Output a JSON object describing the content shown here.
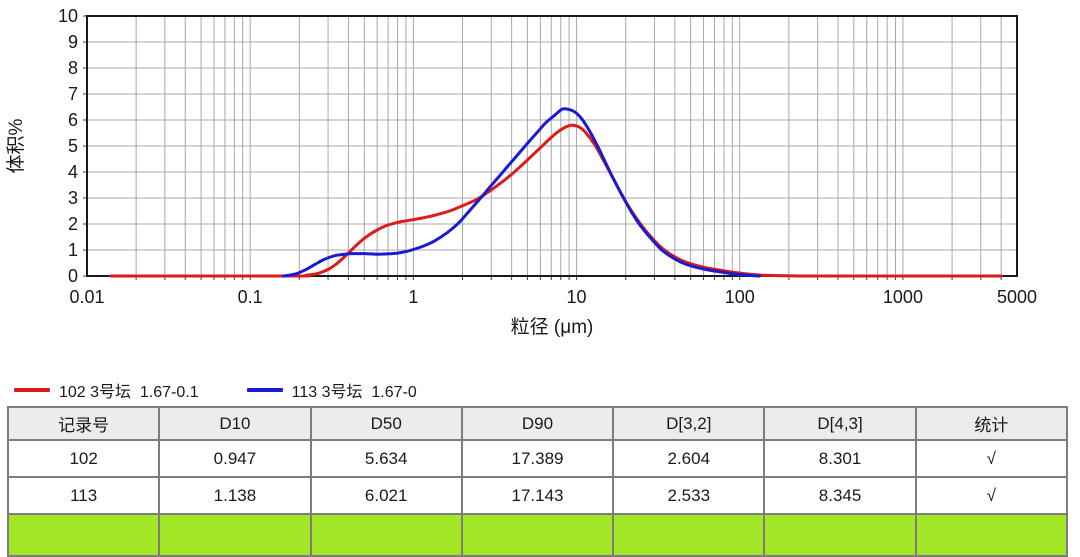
{
  "chart": {
    "title": "",
    "xlabel": "粒径 (μm)",
    "ylabel": "体积%"
  },
  "chart_data": {
    "type": "line",
    "xscale": "log",
    "xlim": [
      0.01,
      5000
    ],
    "ylim": [
      0,
      10
    ],
    "xticks": [
      "0.01",
      "0.1",
      "1",
      "10",
      "100",
      "1000",
      "5000"
    ],
    "yticks": [
      0,
      1,
      2,
      3,
      4,
      5,
      6,
      7,
      8,
      9,
      10
    ],
    "grid": true,
    "grid_color": "#a8a8a8",
    "axis_color": "#1a1a1a",
    "xlabel": "粒径 (μm)",
    "ylabel": "体积%",
    "legend_position": "below-left",
    "series": [
      {
        "name": "102 3号坛  1.67-0.1",
        "color": "#de1b1b",
        "points": [
          [
            0.014,
            0
          ],
          [
            0.18,
            0
          ],
          [
            0.22,
            0.03
          ],
          [
            0.26,
            0.1
          ],
          [
            0.3,
            0.25
          ],
          [
            0.34,
            0.48
          ],
          [
            0.38,
            0.75
          ],
          [
            0.42,
            1.02
          ],
          [
            0.46,
            1.25
          ],
          [
            0.5,
            1.45
          ],
          [
            0.55,
            1.63
          ],
          [
            0.6,
            1.77
          ],
          [
            0.65,
            1.88
          ],
          [
            0.7,
            1.96
          ],
          [
            0.8,
            2.06
          ],
          [
            0.9,
            2.12
          ],
          [
            1.0,
            2.17
          ],
          [
            1.2,
            2.26
          ],
          [
            1.4,
            2.36
          ],
          [
            1.7,
            2.52
          ],
          [
            2.0,
            2.7
          ],
          [
            2.4,
            2.92
          ],
          [
            2.8,
            3.18
          ],
          [
            3.3,
            3.5
          ],
          [
            3.9,
            3.85
          ],
          [
            4.6,
            4.25
          ],
          [
            5.4,
            4.66
          ],
          [
            6.3,
            5.06
          ],
          [
            7.2,
            5.4
          ],
          [
            8.0,
            5.62
          ],
          [
            8.8,
            5.76
          ],
          [
            9.5,
            5.8
          ],
          [
            10.5,
            5.71
          ],
          [
            11.5,
            5.48
          ],
          [
            13,
            5.02
          ],
          [
            15,
            4.32
          ],
          [
            17,
            3.68
          ],
          [
            19.5,
            2.98
          ],
          [
            22,
            2.45
          ],
          [
            25,
            1.95
          ],
          [
            29,
            1.46
          ],
          [
            33,
            1.1
          ],
          [
            38,
            0.82
          ],
          [
            44,
            0.6
          ],
          [
            52,
            0.44
          ],
          [
            62,
            0.32
          ],
          [
            75,
            0.23
          ],
          [
            90,
            0.15
          ],
          [
            110,
            0.08
          ],
          [
            135,
            0.035
          ],
          [
            170,
            0.015
          ],
          [
            220,
            0.005
          ],
          [
            300,
            0
          ],
          [
            4000,
            0
          ]
        ]
      },
      {
        "name": "113 3号坛  1.67-0",
        "color": "#1a1ad2",
        "points": [
          [
            0.16,
            0
          ],
          [
            0.19,
            0.08
          ],
          [
            0.22,
            0.25
          ],
          [
            0.25,
            0.45
          ],
          [
            0.28,
            0.62
          ],
          [
            0.31,
            0.73
          ],
          [
            0.34,
            0.8
          ],
          [
            0.38,
            0.84
          ],
          [
            0.42,
            0.86
          ],
          [
            0.5,
            0.86
          ],
          [
            0.6,
            0.84
          ],
          [
            0.7,
            0.85
          ],
          [
            0.8,
            0.88
          ],
          [
            0.9,
            0.94
          ],
          [
            1.0,
            1.02
          ],
          [
            1.15,
            1.15
          ],
          [
            1.35,
            1.35
          ],
          [
            1.6,
            1.65
          ],
          [
            1.9,
            2.05
          ],
          [
            2.2,
            2.5
          ],
          [
            2.6,
            3.02
          ],
          [
            3.0,
            3.48
          ],
          [
            3.5,
            3.97
          ],
          [
            4.1,
            4.47
          ],
          [
            4.8,
            4.97
          ],
          [
            5.6,
            5.45
          ],
          [
            6.5,
            5.9
          ],
          [
            7.4,
            6.2
          ],
          [
            8.2,
            6.42
          ],
          [
            9.0,
            6.4
          ],
          [
            9.8,
            6.3
          ],
          [
            10.8,
            6.03
          ],
          [
            12,
            5.58
          ],
          [
            13.5,
            4.98
          ],
          [
            15,
            4.38
          ],
          [
            17,
            3.68
          ],
          [
            19.5,
            2.98
          ],
          [
            22,
            2.4
          ],
          [
            25,
            1.88
          ],
          [
            29,
            1.4
          ],
          [
            33,
            1.02
          ],
          [
            38,
            0.74
          ],
          [
            44,
            0.52
          ],
          [
            52,
            0.36
          ],
          [
            62,
            0.25
          ],
          [
            75,
            0.16
          ],
          [
            90,
            0.09
          ],
          [
            105,
            0.045
          ],
          [
            120,
            0.015
          ],
          [
            132,
            0
          ]
        ]
      }
    ]
  },
  "legend": {
    "items": [
      {
        "label": "102 3号坛  1.67-0.1",
        "color": "#de1b1b"
      },
      {
        "label": "113 3号坛  1.67-0",
        "color": "#1a1ad2"
      }
    ]
  },
  "table": {
    "headers": [
      "记录号",
      "D10",
      "D50",
      "D90",
      "D[3,2]",
      "D[4,3]",
      "统计"
    ],
    "rows": [
      {
        "cells": [
          "102",
          "0.947",
          "5.634",
          "17.389",
          "2.604",
          "8.301",
          "√"
        ]
      },
      {
        "cells": [
          "113",
          "1.138",
          "6.021",
          "17.143",
          "2.533",
          "8.345",
          "√"
        ]
      },
      {
        "cells": [
          "",
          "",
          "",
          "",
          "",
          "",
          ""
        ],
        "highlight": true
      }
    ],
    "highlight_color": "#a3e626",
    "header_bg": "#ececec"
  }
}
